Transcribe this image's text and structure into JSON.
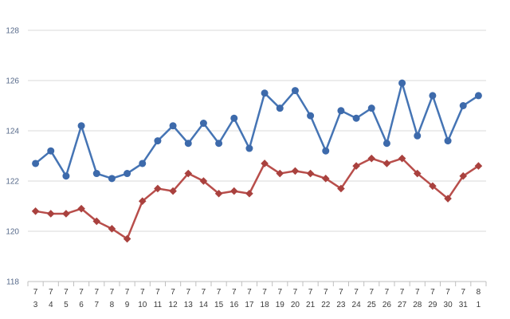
{
  "chart_data": {
    "type": "line",
    "ylim": [
      118,
      128
    ],
    "y_ticks": [
      118,
      120,
      122,
      124,
      126,
      128
    ],
    "grid": "horizontal",
    "legend": "none",
    "categories": [
      [
        "7",
        "3"
      ],
      [
        "7",
        "4"
      ],
      [
        "7",
        "5"
      ],
      [
        "7",
        "6"
      ],
      [
        "7",
        "7"
      ],
      [
        "7",
        "8"
      ],
      [
        "7",
        "9"
      ],
      [
        "7",
        "10"
      ],
      [
        "7",
        "11"
      ],
      [
        "7",
        "12"
      ],
      [
        "7",
        "13"
      ],
      [
        "7",
        "14"
      ],
      [
        "7",
        "15"
      ],
      [
        "7",
        "16"
      ],
      [
        "7",
        "17"
      ],
      [
        "7",
        "18"
      ],
      [
        "7",
        "19"
      ],
      [
        "7",
        "20"
      ],
      [
        "7",
        "21"
      ],
      [
        "7",
        "22"
      ],
      [
        "7",
        "23"
      ],
      [
        "7",
        "24"
      ],
      [
        "7",
        "25"
      ],
      [
        "7",
        "26"
      ],
      [
        "7",
        "27"
      ],
      [
        "7",
        "28"
      ],
      [
        "7",
        "29"
      ],
      [
        "7",
        "30"
      ],
      [
        "7",
        "31"
      ],
      [
        "8",
        "1"
      ]
    ],
    "series": [
      {
        "color": "#4574b4",
        "marker_color": "#3d6aab",
        "marker": "circle",
        "values": [
          122.7,
          123.2,
          122.2,
          124.2,
          122.3,
          122.1,
          122.3,
          122.7,
          123.6,
          124.2,
          123.5,
          124.3,
          123.5,
          124.5,
          123.3,
          125.5,
          124.9,
          125.6,
          124.6,
          123.2,
          124.8,
          124.5,
          124.9,
          123.5,
          125.9,
          123.8,
          125.4,
          123.6,
          125.0,
          125.4
        ]
      },
      {
        "color": "#b84e4b",
        "marker_color": "#a9413e",
        "marker": "diamond",
        "values": [
          120.8,
          120.7,
          120.7,
          120.9,
          120.4,
          120.1,
          119.7,
          121.2,
          121.7,
          121.6,
          122.3,
          122.0,
          121.5,
          121.6,
          121.5,
          122.7,
          122.3,
          122.4,
          122.3,
          122.1,
          121.7,
          122.6,
          122.9,
          122.7,
          122.9,
          122.3,
          121.8,
          121.3,
          122.2,
          122.6
        ]
      }
    ]
  },
  "colors": {
    "background": "#ffffff",
    "grid": "#d9d9d9",
    "axis": "#bfbfbf",
    "y_tick_label": "#56698a",
    "x_tick_label": "#3a3a3a"
  }
}
